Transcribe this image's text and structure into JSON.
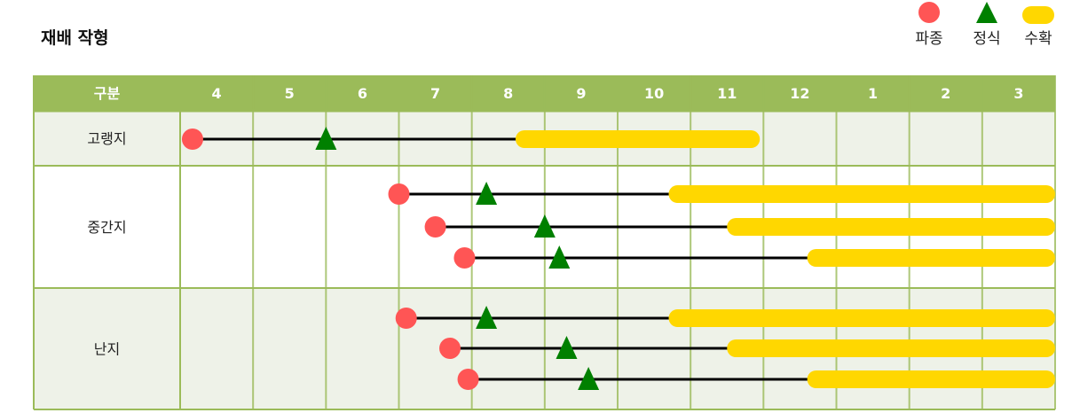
{
  "title": "재배 작형",
  "legend": [
    {
      "label": "파종",
      "shape": "circle",
      "color": "#ff5555"
    },
    {
      "label": "정식",
      "shape": "triangle",
      "color": "#008000"
    },
    {
      "label": "수확",
      "shape": "bar",
      "color": "#ffd700"
    }
  ],
  "colors": {
    "header": "#9bbb59",
    "grid": "#9bbb59",
    "row_alt": "#eef2e8",
    "line": "#000000"
  },
  "chart_data": {
    "type": "gantt",
    "header_label": "구분",
    "months": [
      "4",
      "5",
      "6",
      "7",
      "8",
      "9",
      "10",
      "11",
      "12",
      "1",
      "2",
      "3"
    ],
    "note": "positions in month units where 4.0 = start of April, 13 = January, 16 = end of March",
    "rows": [
      {
        "label": "고랭지",
        "schedules": [
          {
            "sow": 4.17,
            "transplant": 6.0,
            "harvest": [
              8.6,
              11.95
            ]
          }
        ]
      },
      {
        "label": "중간지",
        "schedules": [
          {
            "sow": 7.0,
            "transplant": 8.2,
            "harvest": [
              10.7,
              16.0
            ]
          },
          {
            "sow": 7.5,
            "transplant": 9.0,
            "harvest": [
              11.5,
              16.0
            ]
          },
          {
            "sow": 7.9,
            "transplant": 9.2,
            "harvest": [
              12.6,
              16.0
            ]
          }
        ]
      },
      {
        "label": "난지",
        "schedules": [
          {
            "sow": 7.1,
            "transplant": 8.2,
            "harvest": [
              10.7,
              16.0
            ]
          },
          {
            "sow": 7.7,
            "transplant": 9.3,
            "harvest": [
              11.5,
              16.0
            ]
          },
          {
            "sow": 7.95,
            "transplant": 9.6,
            "harvest": [
              12.6,
              16.0
            ]
          }
        ]
      }
    ]
  }
}
